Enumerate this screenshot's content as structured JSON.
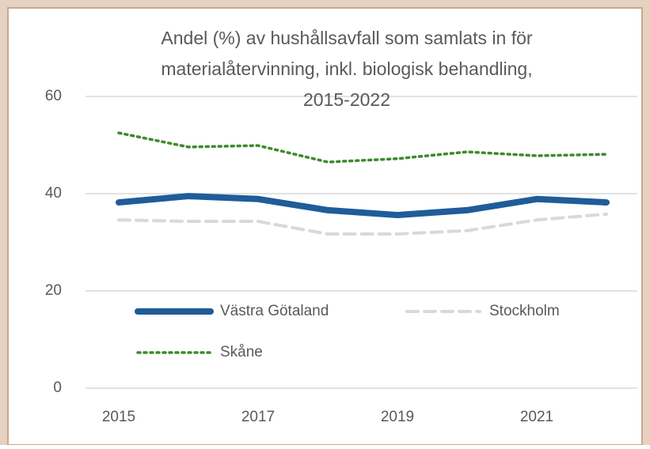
{
  "chart_data": {
    "type": "line",
    "title": [
      "Andel (%) av hushållsavfall som samlats in för",
      "materialåtervinning, inkl. biologisk behandling,",
      "2015-2022"
    ],
    "x": [
      2015,
      2016,
      2017,
      2018,
      2019,
      2020,
      2021,
      2022
    ],
    "xlim": [
      2015,
      2022
    ],
    "xticks": [
      2015,
      2017,
      2019,
      2021
    ],
    "ylim": [
      0,
      60
    ],
    "yticks": [
      0,
      20,
      40,
      60
    ],
    "grid": true,
    "series": [
      {
        "name": "Västra Götaland",
        "color": "#1f5c99",
        "values": [
          38.2,
          39.5,
          38.9,
          36.6,
          35.6,
          36.6,
          38.9,
          38.2
        ]
      },
      {
        "name": "Stockholm",
        "color": "#d9d9d9",
        "values": [
          34.6,
          34.3,
          34.3,
          31.7,
          31.7,
          32.4,
          34.6,
          35.8
        ]
      },
      {
        "name": "Skåne",
        "color": "#3e8a2e",
        "values": [
          52.5,
          49.6,
          49.9,
          46.5,
          47.2,
          48.6,
          47.8,
          48.1
        ]
      }
    ]
  }
}
